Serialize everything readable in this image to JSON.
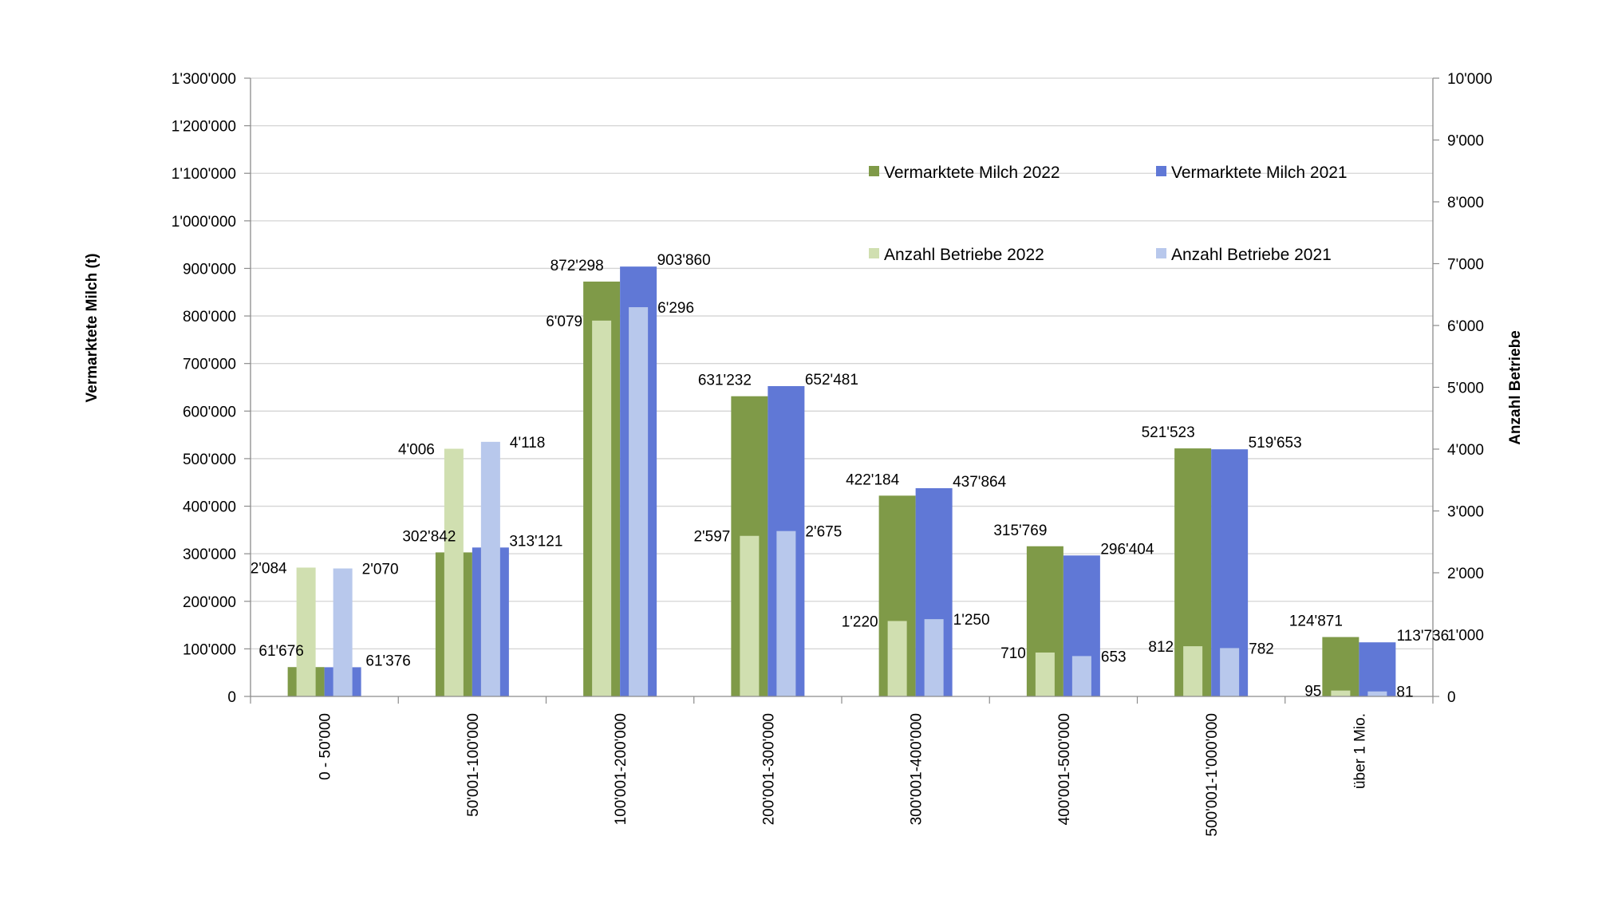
{
  "chart_data": {
    "type": "bar",
    "title": "",
    "categories": [
      "0 - 50'000",
      "50'001-100'000",
      "100'001-200'000",
      "200'001-300'000",
      "300'001-400'000",
      "400'001-500'000",
      "500'001-1'000'000",
      "über 1 Mio."
    ],
    "ylabel_left": "Vermarktete Milch (t)",
    "ylabel_right": "Anzahl Betriebe",
    "ylim_left": [
      0,
      1300000
    ],
    "ylim_right": [
      0,
      10000
    ],
    "yticks_left": [
      "0",
      "100'000",
      "200'000",
      "300'000",
      "400'000",
      "500'000",
      "600'000",
      "700'000",
      "800'000",
      "900'000",
      "1'000'000",
      "1'100'000",
      "1'200'000",
      "1'300'000"
    ],
    "yticks_right": [
      "0",
      "1'000",
      "2'000",
      "3'000",
      "4'000",
      "5'000",
      "6'000",
      "7'000",
      "8'000",
      "9'000",
      "10'000"
    ],
    "grid": true,
    "legend_position": "top-right",
    "series": [
      {
        "name": "Vermarktete Milch 2022",
        "axis": "left",
        "color": "#7f9a48",
        "values": [
          61676,
          302842,
          872298,
          631232,
          422184,
          315769,
          521523,
          124871
        ],
        "labels": [
          "61'676",
          "302'842",
          "872'298",
          "631'232",
          "422'184",
          "315'769",
          "521'523",
          "124'871"
        ]
      },
      {
        "name": "Vermarktete Milch 2021",
        "axis": "left",
        "color": "#6078d6",
        "values": [
          61376,
          313121,
          903860,
          652481,
          437864,
          296404,
          519653,
          113736
        ],
        "labels": [
          "61'376",
          "313'121",
          "903'860",
          "652'481",
          "437'864",
          "296'404",
          "519'653",
          "113'736"
        ]
      },
      {
        "name": "Anzahl Betriebe 2022",
        "axis": "right",
        "color": "#d0dfb0",
        "values": [
          2084,
          4006,
          6079,
          2597,
          1220,
          710,
          812,
          95
        ],
        "labels": [
          "2'084",
          "4'006",
          "6'079",
          "2'597",
          "1'220",
          "710",
          "812",
          "95"
        ]
      },
      {
        "name": "Anzahl Betriebe 2021",
        "axis": "right",
        "color": "#b8c8ec",
        "values": [
          2070,
          4118,
          6296,
          2675,
          1250,
          653,
          782,
          81
        ],
        "labels": [
          "2'070",
          "4'118",
          "6'296",
          "2'675",
          "1'250",
          "653",
          "782",
          "81"
        ]
      }
    ]
  }
}
